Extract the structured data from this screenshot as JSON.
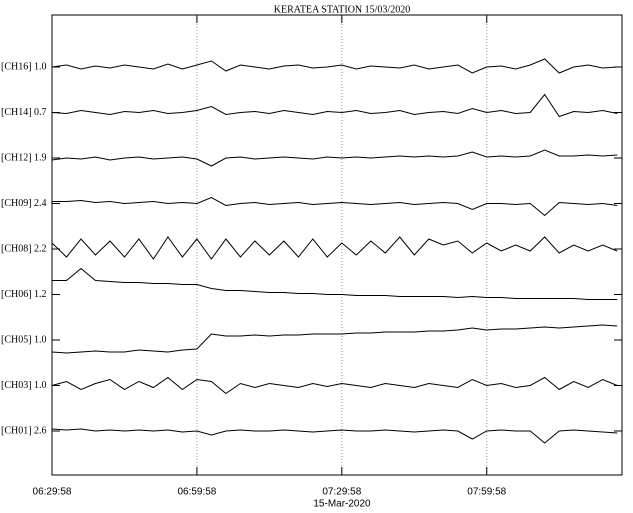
{
  "chart_data": {
    "type": "line",
    "title": "KERATEA STATION 15/03/2020",
    "xlabel": "15-Mar-2020",
    "x": [
      0,
      3,
      6,
      9,
      12,
      15,
      18,
      21,
      24,
      27,
      30,
      33,
      36,
      39,
      42,
      45,
      48,
      51,
      54,
      57,
      60,
      63,
      66,
      69,
      72,
      75,
      78,
      81,
      84,
      87,
      90,
      93,
      96,
      99,
      102,
      105,
      108,
      111,
      114,
      117
    ],
    "xlim": [
      0,
      118
    ],
    "xticks": [
      {
        "value": 0,
        "label": "06:29:58"
      },
      {
        "value": 30,
        "label": "06:59:58"
      },
      {
        "value": 60,
        "label": "07:29:58"
      },
      {
        "value": 90,
        "label": "07:59:58"
      }
    ],
    "ylim": [
      -1,
      1
    ],
    "grid": true,
    "series": [
      {
        "name": "[CH16] 1.0",
        "color": "#000000",
        "values": [
          0,
          0.1,
          -0.1,
          0.05,
          -0.05,
          0.1,
          0,
          -0.1,
          0.15,
          -0.1,
          0.1,
          0.3,
          -0.2,
          0.1,
          0,
          -0.1,
          0.05,
          0.1,
          -0.05,
          0,
          0.1,
          -0.1,
          0.05,
          0,
          -0.05,
          0.1,
          -0.1,
          0,
          0.1,
          -0.3,
          0,
          0.05,
          -0.1,
          0.1,
          0.4,
          -0.3,
          0,
          0.1,
          -0.05,
          0
        ]
      },
      {
        "name": "[CH14] 0.7",
        "color": "#000000",
        "values": [
          0,
          -0.05,
          0.1,
          0,
          -0.1,
          0.05,
          0,
          0.1,
          -0.05,
          0,
          0.1,
          0.3,
          -0.1,
          0,
          0.05,
          -0.05,
          0.1,
          0,
          -0.1,
          0.05,
          0,
          0.1,
          -0.05,
          0,
          0.1,
          -0.1,
          0,
          0.05,
          -0.05,
          0.2,
          0,
          0.1,
          -0.05,
          0,
          0.9,
          -0.2,
          0.05,
          0,
          0.1,
          -0.05
        ]
      },
      {
        "name": "[CH12] 1.9",
        "color": "#000000",
        "values": [
          -0.1,
          0,
          -0.05,
          0.05,
          -0.1,
          0,
          0.05,
          -0.05,
          0,
          0.05,
          -0.05,
          -0.4,
          0,
          0.05,
          -0.05,
          0,
          0.05,
          0,
          -0.05,
          0.05,
          0,
          0.05,
          0,
          0.05,
          0.1,
          0.05,
          0.1,
          0.05,
          0.1,
          0.3,
          0.05,
          0.1,
          0.05,
          0.1,
          0.4,
          0.1,
          0.1,
          0.15,
          0.1,
          0.15
        ]
      },
      {
        "name": "[CH09] 2.4",
        "color": "#000000",
        "values": [
          0.1,
          0.1,
          0.15,
          0.05,
          0.1,
          0,
          0.05,
          0.1,
          0,
          0.05,
          0,
          0.3,
          -0.1,
          0,
          0.05,
          -0.05,
          0,
          0.05,
          -0.05,
          0,
          0.05,
          0,
          -0.05,
          0,
          0.05,
          -0.05,
          0,
          0.05,
          0,
          -0.3,
          0,
          0,
          -0.05,
          0,
          -0.6,
          0.05,
          0,
          -0.05,
          0,
          -0.1
        ]
      },
      {
        "name": "[CH08] 2.2",
        "color": "#000000",
        "values": [
          0.3,
          -0.4,
          0.5,
          -0.3,
          0.4,
          -0.4,
          0.5,
          -0.5,
          0.6,
          -0.4,
          0.5,
          -0.5,
          0.5,
          -0.4,
          0.4,
          -0.3,
          0.4,
          -0.4,
          0.5,
          -0.4,
          0.3,
          -0.3,
          0.4,
          -0.2,
          0.6,
          -0.3,
          0.5,
          0.2,
          0.4,
          -0.2,
          0.3,
          -0.1,
          0.2,
          -0.1,
          0.6,
          -0.2,
          0.2,
          -0.1,
          0.2,
          -0.1
        ]
      },
      {
        "name": "[CH06] 1.2",
        "color": "#000000",
        "values": [
          0.7,
          0.7,
          1.3,
          0.7,
          0.65,
          0.6,
          0.6,
          0.55,
          0.55,
          0.5,
          0.5,
          0.3,
          0.2,
          0.2,
          0.15,
          0.1,
          0.1,
          0.05,
          0.05,
          0,
          0,
          -0.05,
          -0.05,
          -0.05,
          -0.1,
          -0.1,
          -0.1,
          -0.1,
          -0.15,
          -0.1,
          -0.15,
          -0.15,
          -0.2,
          -0.2,
          -0.2,
          -0.2,
          -0.2,
          -0.25,
          -0.25,
          -0.25
        ]
      },
      {
        "name": "[CH05] 1.0",
        "color": "#000000",
        "values": [
          -0.6,
          -0.65,
          -0.6,
          -0.55,
          -0.6,
          -0.6,
          -0.5,
          -0.55,
          -0.6,
          -0.5,
          -0.45,
          0.3,
          0.2,
          0.2,
          0.25,
          0.2,
          0.25,
          0.25,
          0.3,
          0.3,
          0.3,
          0.35,
          0.35,
          0.4,
          0.4,
          0.4,
          0.45,
          0.45,
          0.5,
          0.6,
          0.5,
          0.55,
          0.55,
          0.6,
          0.65,
          0.6,
          0.65,
          0.7,
          0.75,
          0.7
        ]
      },
      {
        "name": "[CH03] 1.0",
        "color": "#000000",
        "values": [
          0,
          0.2,
          -0.2,
          0.1,
          0.3,
          -0.2,
          0.2,
          -0.1,
          0.4,
          -0.2,
          0.3,
          0.2,
          -0.4,
          0.1,
          -0.1,
          0.1,
          0,
          -0.1,
          0.1,
          -0.05,
          0.1,
          0,
          -0.1,
          0.1,
          0,
          -0.1,
          0.1,
          0,
          -0.1,
          0.3,
          0,
          0.1,
          -0.1,
          0,
          0.4,
          -0.2,
          0.2,
          -0.1,
          0.3,
          0
        ]
      },
      {
        "name": "[CH01] 2.6",
        "color": "#000000",
        "values": [
          0.1,
          0.05,
          0.1,
          0,
          0.05,
          0,
          0.05,
          0,
          0.05,
          -0.05,
          0,
          -0.2,
          0,
          0.05,
          0,
          0,
          0.05,
          0,
          -0.05,
          0,
          0.05,
          0,
          0,
          0.05,
          0,
          -0.05,
          0,
          0.05,
          0,
          -0.4,
          0,
          0.05,
          0,
          0,
          -0.6,
          0,
          0.05,
          0,
          -0.05,
          -0.1
        ]
      }
    ]
  }
}
